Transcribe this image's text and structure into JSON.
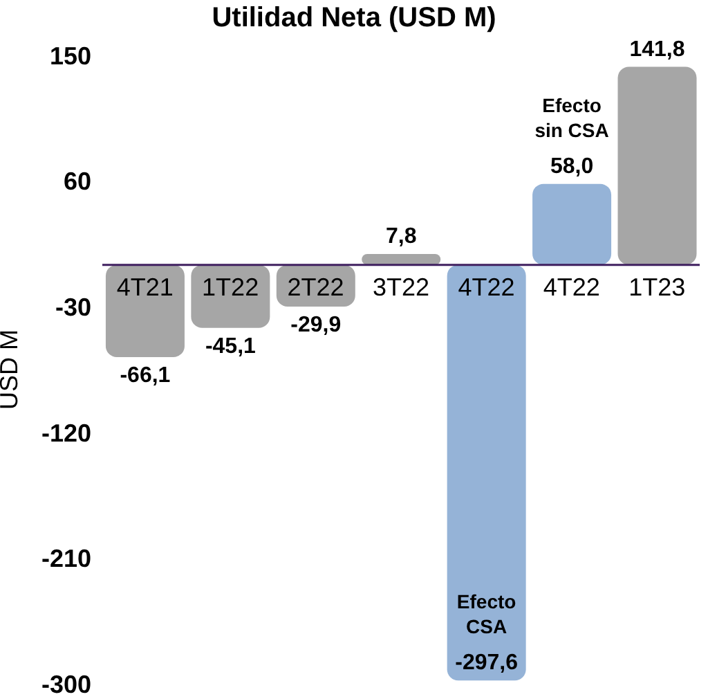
{
  "chart_data": {
    "type": "bar",
    "title": "Utilidad Neta (USD M)",
    "ylabel": "USD M",
    "categories": [
      "4T21",
      "1T22",
      "2T22",
      "3T22",
      "4T22",
      "4T22",
      "1T23"
    ],
    "values": [
      -66.1,
      -45.1,
      -29.9,
      7.8,
      -297.6,
      58.0,
      141.8
    ],
    "colors": [
      "#a6a6a6",
      "#a6a6a6",
      "#a6a6a6",
      "#a6a6a6",
      "#95b3d7",
      "#95b3d7",
      "#a6a6a6"
    ],
    "value_labels": [
      "-66,1",
      "-45,1",
      "-29,9",
      "7,8",
      "-297,6",
      "58,0",
      "141,8"
    ],
    "ylim": [
      -300,
      150
    ],
    "yticks": [
      150,
      60,
      -30,
      -120,
      -210,
      -300
    ],
    "annotations": [
      "Efecto CSA",
      "Efecto sin CSA"
    ]
  }
}
